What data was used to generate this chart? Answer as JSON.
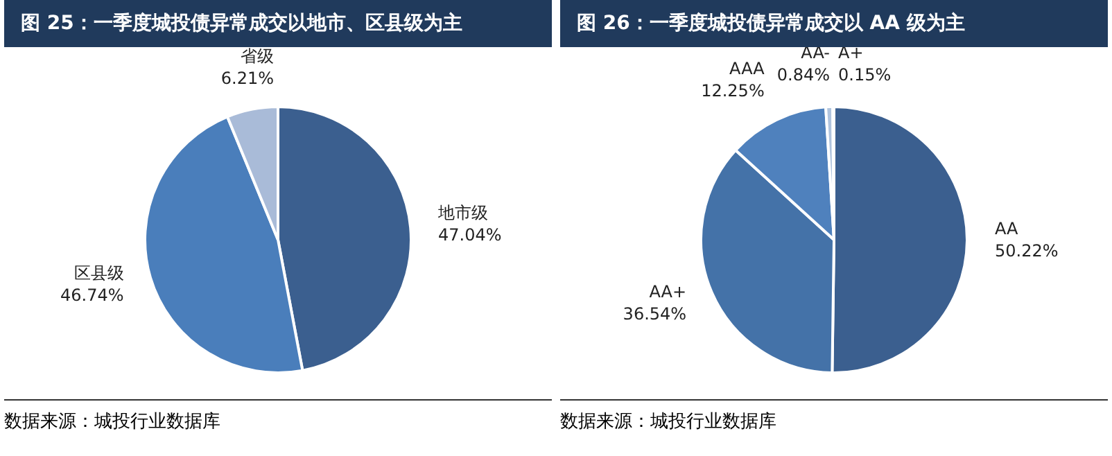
{
  "chart_data": [
    {
      "type": "pie",
      "title": "图 25：一季度城投债异常成交以地市、区县级为主",
      "categories": [
        "地市级",
        "区县级",
        "省级"
      ],
      "values": [
        47.04,
        46.74,
        6.21
      ],
      "colors": [
        "#3b5f8f",
        "#4a7ebb",
        "#a9bbd8"
      ],
      "value_labels": [
        "47.04%",
        "46.74%",
        "6.21%"
      ],
      "annotations": [
        "数据来源：城投行业数据库"
      ]
    },
    {
      "type": "pie",
      "title": "图 26：一季度城投债异常成交以 AA 级为主",
      "categories": [
        "AA",
        "AA+",
        "AAA",
        "AA-",
        "A+"
      ],
      "values": [
        50.22,
        36.54,
        12.25,
        0.84,
        0.15
      ],
      "colors": [
        "#3b5f8f",
        "#4472a8",
        "#4f81bd",
        "#b0c4de",
        "#c8d4e8"
      ],
      "value_labels": [
        "50.22%",
        "36.54%",
        "12.25%",
        "0.84%",
        "0.15%"
      ],
      "annotations": [
        "数据来源：城投行业数据库"
      ]
    }
  ]
}
